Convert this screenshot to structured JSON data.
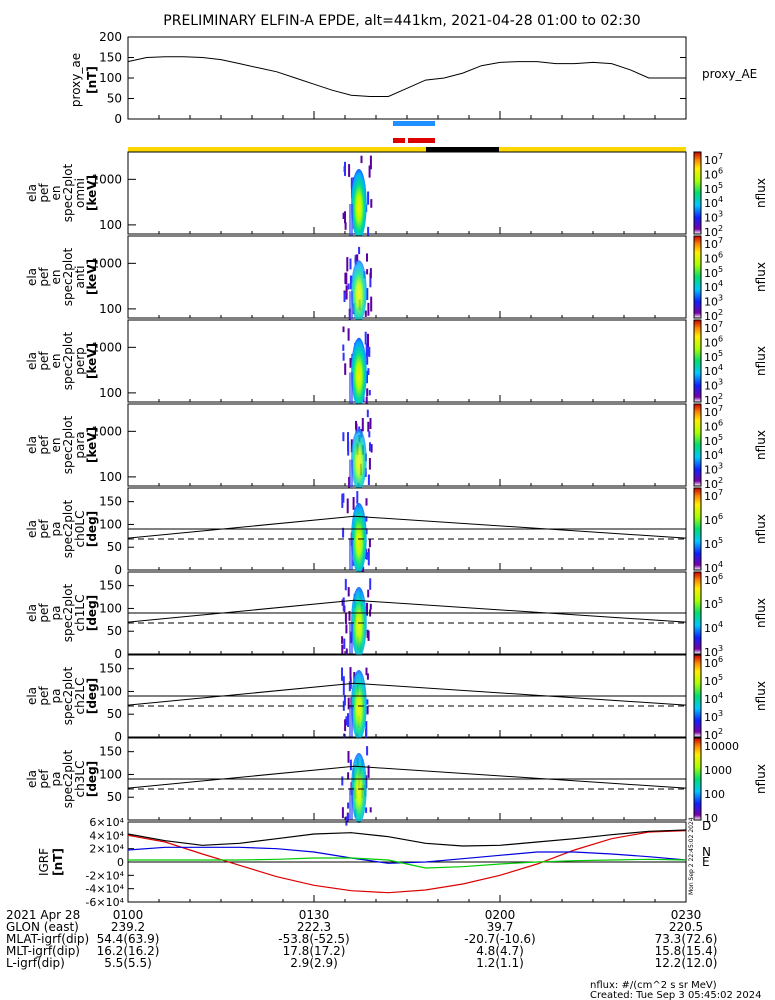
{
  "title": "PRELIMINARY ELFIN-A EPDE, alt=441km, 2021-04-28 01:00 to 02:30",
  "colors": {
    "foreground": "#000000",
    "background": "#ffffff",
    "sci_zone": "#1e90ff",
    "orbit_bar": "#ffd700",
    "shadow": "#000000",
    "red_marker": "#dd0000"
  },
  "chart_data": [
    {
      "type": "line",
      "ylabel": "proxy_ae\n[nT]",
      "legend": "proxy_AE",
      "ylim": [
        0,
        200
      ],
      "yticks": [
        "200",
        "150",
        "100",
        "50",
        "0"
      ],
      "x": [
        0,
        3,
        6,
        9,
        12,
        15,
        18,
        21,
        24,
        27,
        30,
        33,
        36,
        39,
        42,
        45,
        48,
        51,
        54,
        57,
        60,
        63,
        66,
        69,
        72,
        75,
        78,
        81,
        84,
        87,
        90
      ],
      "values": [
        140,
        150,
        152,
        152,
        150,
        145,
        135,
        125,
        115,
        100,
        85,
        70,
        58,
        55,
        55,
        75,
        95,
        100,
        112,
        130,
        138,
        140,
        140,
        135,
        135,
        138,
        135,
        120,
        100,
        100,
        100
      ]
    },
    {
      "type": "heatmap",
      "ylabel": [
        "ela",
        "pef",
        "en",
        "spec2plot",
        "omni",
        "[keV]"
      ],
      "yticks": [
        "1000",
        "100"
      ],
      "cbar_ticks": [
        "10^7",
        "10^6",
        "10^5",
        "10^4",
        "10^3",
        "10^2"
      ],
      "cbar_label": "nflux"
    },
    {
      "type": "heatmap",
      "ylabel": [
        "ela",
        "pef",
        "en",
        "spec2plot",
        "anti",
        "[keV]"
      ],
      "yticks": [
        "1000",
        "100"
      ],
      "cbar_ticks": [
        "10^7",
        "10^6",
        "10^5",
        "10^4",
        "10^3",
        "10^2"
      ],
      "cbar_label": "nflux"
    },
    {
      "type": "heatmap",
      "ylabel": [
        "ela",
        "pef",
        "en",
        "spec2plot",
        "perp",
        "[keV]"
      ],
      "yticks": [
        "1000",
        "100"
      ],
      "cbar_ticks": [
        "10^7",
        "10^6",
        "10^5",
        "10^4",
        "10^3",
        "10^2"
      ],
      "cbar_label": "nflux"
    },
    {
      "type": "heatmap",
      "ylabel": [
        "ela",
        "pef",
        "en",
        "spec2plot",
        "para",
        "[keV]"
      ],
      "yticks": [
        "1000",
        "100"
      ],
      "cbar_ticks": [
        "10^7",
        "10^6",
        "10^5",
        "10^4",
        "10^3",
        "10^2"
      ],
      "cbar_label": "nflux"
    },
    {
      "type": "heatmap",
      "ylabel": [
        "ela",
        "pef",
        "pa",
        "spec2plot",
        "ch0LC",
        "[deg]"
      ],
      "yticks": [
        "150",
        "100",
        "50",
        "0"
      ],
      "cbar_ticks": [
        "10^7",
        "10^6",
        "10^5",
        "10^4"
      ],
      "cbar_label": "nflux"
    },
    {
      "type": "heatmap",
      "ylabel": [
        "ela",
        "pef",
        "pa",
        "spec2plot",
        "ch1LC",
        "[deg]"
      ],
      "yticks": [
        "150",
        "100",
        "50",
        "0"
      ],
      "cbar_ticks": [
        "10^6",
        "10^5",
        "10^4",
        "10^3"
      ],
      "cbar_label": "nflux"
    },
    {
      "type": "heatmap",
      "ylabel": [
        "ela",
        "pef",
        "pa",
        "spec2plot",
        "ch2LC",
        "[deg]"
      ],
      "yticks": [
        "150",
        "100",
        "50",
        "0"
      ],
      "cbar_ticks": [
        "10^6",
        "10^5",
        "10^4",
        "10^3",
        "10^2"
      ],
      "cbar_label": "nflux"
    },
    {
      "type": "heatmap",
      "ylabel": [
        "ela",
        "pef",
        "pa",
        "spec2plot",
        "ch3LC",
        "[deg]"
      ],
      "yticks": [
        "150",
        "100",
        "50"
      ],
      "cbar_ticks": [
        "10000",
        "1000",
        "100",
        "10"
      ],
      "cbar_label": "nflux"
    },
    {
      "type": "line",
      "ylabel": [
        "IGRF",
        "[nT]"
      ],
      "yticks": [
        "6×10^4",
        "4×10^4",
        "2×10^4",
        "0",
        "-2×10^4",
        "-4×10^4",
        "-6×10^4"
      ],
      "ylim": [
        -60000,
        60000
      ],
      "x": [
        0,
        6,
        12,
        18,
        24,
        30,
        36,
        42,
        48,
        54,
        60,
        66,
        72,
        78,
        84,
        90
      ],
      "series": [
        {
          "name": "D",
          "color": "#dd0000",
          "values": [
            40000,
            30000,
            12000,
            -5000,
            -22000,
            -35000,
            -43000,
            -46000,
            -42000,
            -33000,
            -20000,
            -3000,
            18000,
            35000,
            45000,
            47000
          ]
        },
        {
          "name": "N",
          "color": "#0000dd",
          "values": [
            18000,
            22000,
            22000,
            22000,
            20000,
            15000,
            6000,
            -2000,
            0,
            5000,
            10000,
            15000,
            15000,
            12000,
            8000,
            3000
          ]
        },
        {
          "name": "E",
          "color": "#00cc00",
          "values": [
            3000,
            3000,
            3000,
            3000,
            4000,
            6000,
            6000,
            3000,
            -9000,
            -7000,
            -3000,
            0,
            2000,
            3000,
            4000,
            3000
          ]
        },
        {
          "name": "",
          "color": "#000000",
          "values": [
            42000,
            32000,
            25000,
            28000,
            35000,
            42000,
            44000,
            38000,
            28000,
            24000,
            25000,
            30000,
            35000,
            41000,
            46000,
            48000
          ]
        }
      ]
    }
  ],
  "footer": {
    "rows": [
      {
        "label": "2021 Apr 28",
        "values": [
          "0100",
          "0130",
          "0200",
          "0230"
        ]
      },
      {
        "label": "GLON (east)",
        "values": [
          "239.2",
          "222.3",
          "39.7",
          "220.5"
        ]
      },
      {
        "label": "MLAT-igrf(dip)",
        "values": [
          "54.4(63.9)",
          "-53.8(-52.5)",
          "-20.7(-10.6)",
          "73.3(72.6)"
        ]
      },
      {
        "label": "MLT-igrf(dip)",
        "values": [
          "16.2(16.2)",
          "17.8(17.2)",
          "4.8(4.7)",
          "15.8(15.4)"
        ]
      },
      {
        "label": "L-igrf(dip)",
        "values": [
          "5.5(5.5)",
          "2.9(2.9)",
          "1.2(1.1)",
          "12.2(12.0)"
        ]
      }
    ],
    "units_note": "nflux: #/(cm^2 s sr MeV)",
    "created": "Created: Tue Sep  3 05:45:02 2024",
    "side_stamp": "Mon Sep  2 22:45:02 2024"
  }
}
